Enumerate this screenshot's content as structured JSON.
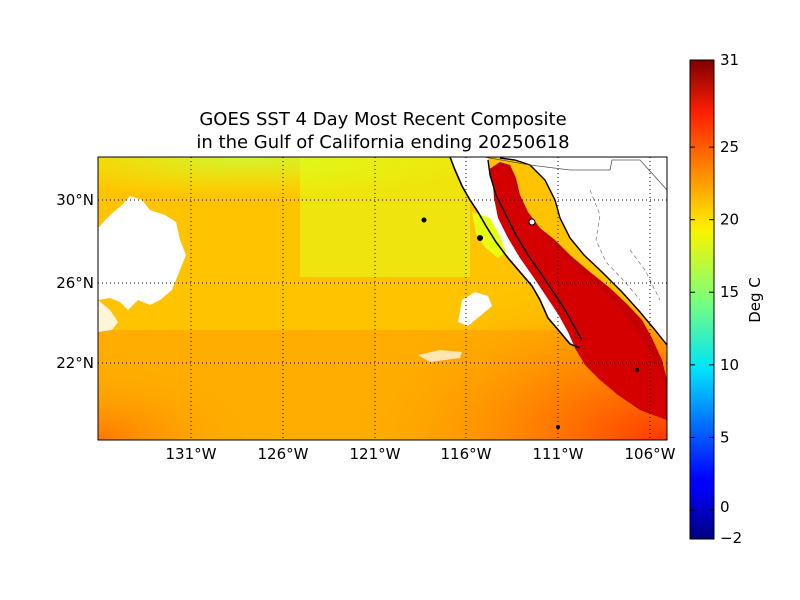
{
  "title": {
    "line1": "GOES SST 4 Day Most Recent Composite",
    "line2": "in the Gulf of California ending 20250618"
  },
  "map": {
    "projection": "cylindrical",
    "lon_range": [
      -136,
      -105
    ],
    "lat_range": [
      18,
      32
    ],
    "meridians": [
      -131,
      -126,
      -121,
      -116,
      -111,
      -106
    ],
    "parallels": [
      22,
      26,
      30
    ],
    "lon_tick_labels": [
      "131°W",
      "126°W",
      "121°W",
      "116°W",
      "111°W",
      "106°W"
    ],
    "lat_tick_labels": [
      "22°N",
      "26°N",
      "30°N"
    ],
    "grid": "dotted",
    "land_color": "#ffffff",
    "coastline_color": "#000000"
  },
  "colorbar": {
    "label": "Deg C",
    "colormap": "jet",
    "min": -2,
    "max": 31,
    "ticks": [
      -2,
      0,
      5,
      10,
      15,
      20,
      25,
      31
    ],
    "tick_labels": [
      "−2",
      "0",
      "5",
      "10",
      "15",
      "20",
      "25",
      "31"
    ],
    "placement": "right"
  }
}
